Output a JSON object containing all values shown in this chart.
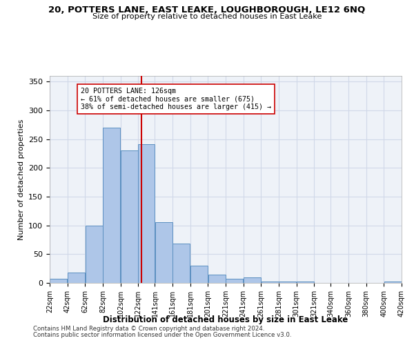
{
  "title": "20, POTTERS LANE, EAST LEAKE, LOUGHBOROUGH, LE12 6NQ",
  "subtitle": "Size of property relative to detached houses in East Leake",
  "xlabel": "Distribution of detached houses by size in East Leake",
  "ylabel": "Number of detached properties",
  "bar_color": "#aec6e8",
  "bar_edge_color": "#5a8fc0",
  "grid_color": "#d0d8e8",
  "background_color": "#eef2f8",
  "marker_line_color": "#cc0000",
  "marker_value": 126,
  "annotation_text": "20 POTTERS LANE: 126sqm\n← 61% of detached houses are smaller (675)\n38% of semi-detached houses are larger (415) →",
  "annotation_box_color": "#ffffff",
  "annotation_box_edge": "#cc0000",
  "bin_edges": [
    22,
    42,
    62,
    82,
    102,
    122,
    141,
    161,
    181,
    201,
    221,
    241,
    261,
    281,
    301,
    321,
    340,
    360,
    380,
    400,
    420
  ],
  "bin_heights": [
    7,
    18,
    100,
    270,
    231,
    241,
    106,
    68,
    30,
    14,
    7,
    10,
    2,
    3,
    2,
    0,
    0,
    0,
    0,
    2
  ],
  "ylim": [
    0,
    360
  ],
  "yticks": [
    0,
    50,
    100,
    150,
    200,
    250,
    300,
    350
  ],
  "footer1": "Contains HM Land Registry data © Crown copyright and database right 2024.",
  "footer2": "Contains public sector information licensed under the Open Government Licence v3.0."
}
